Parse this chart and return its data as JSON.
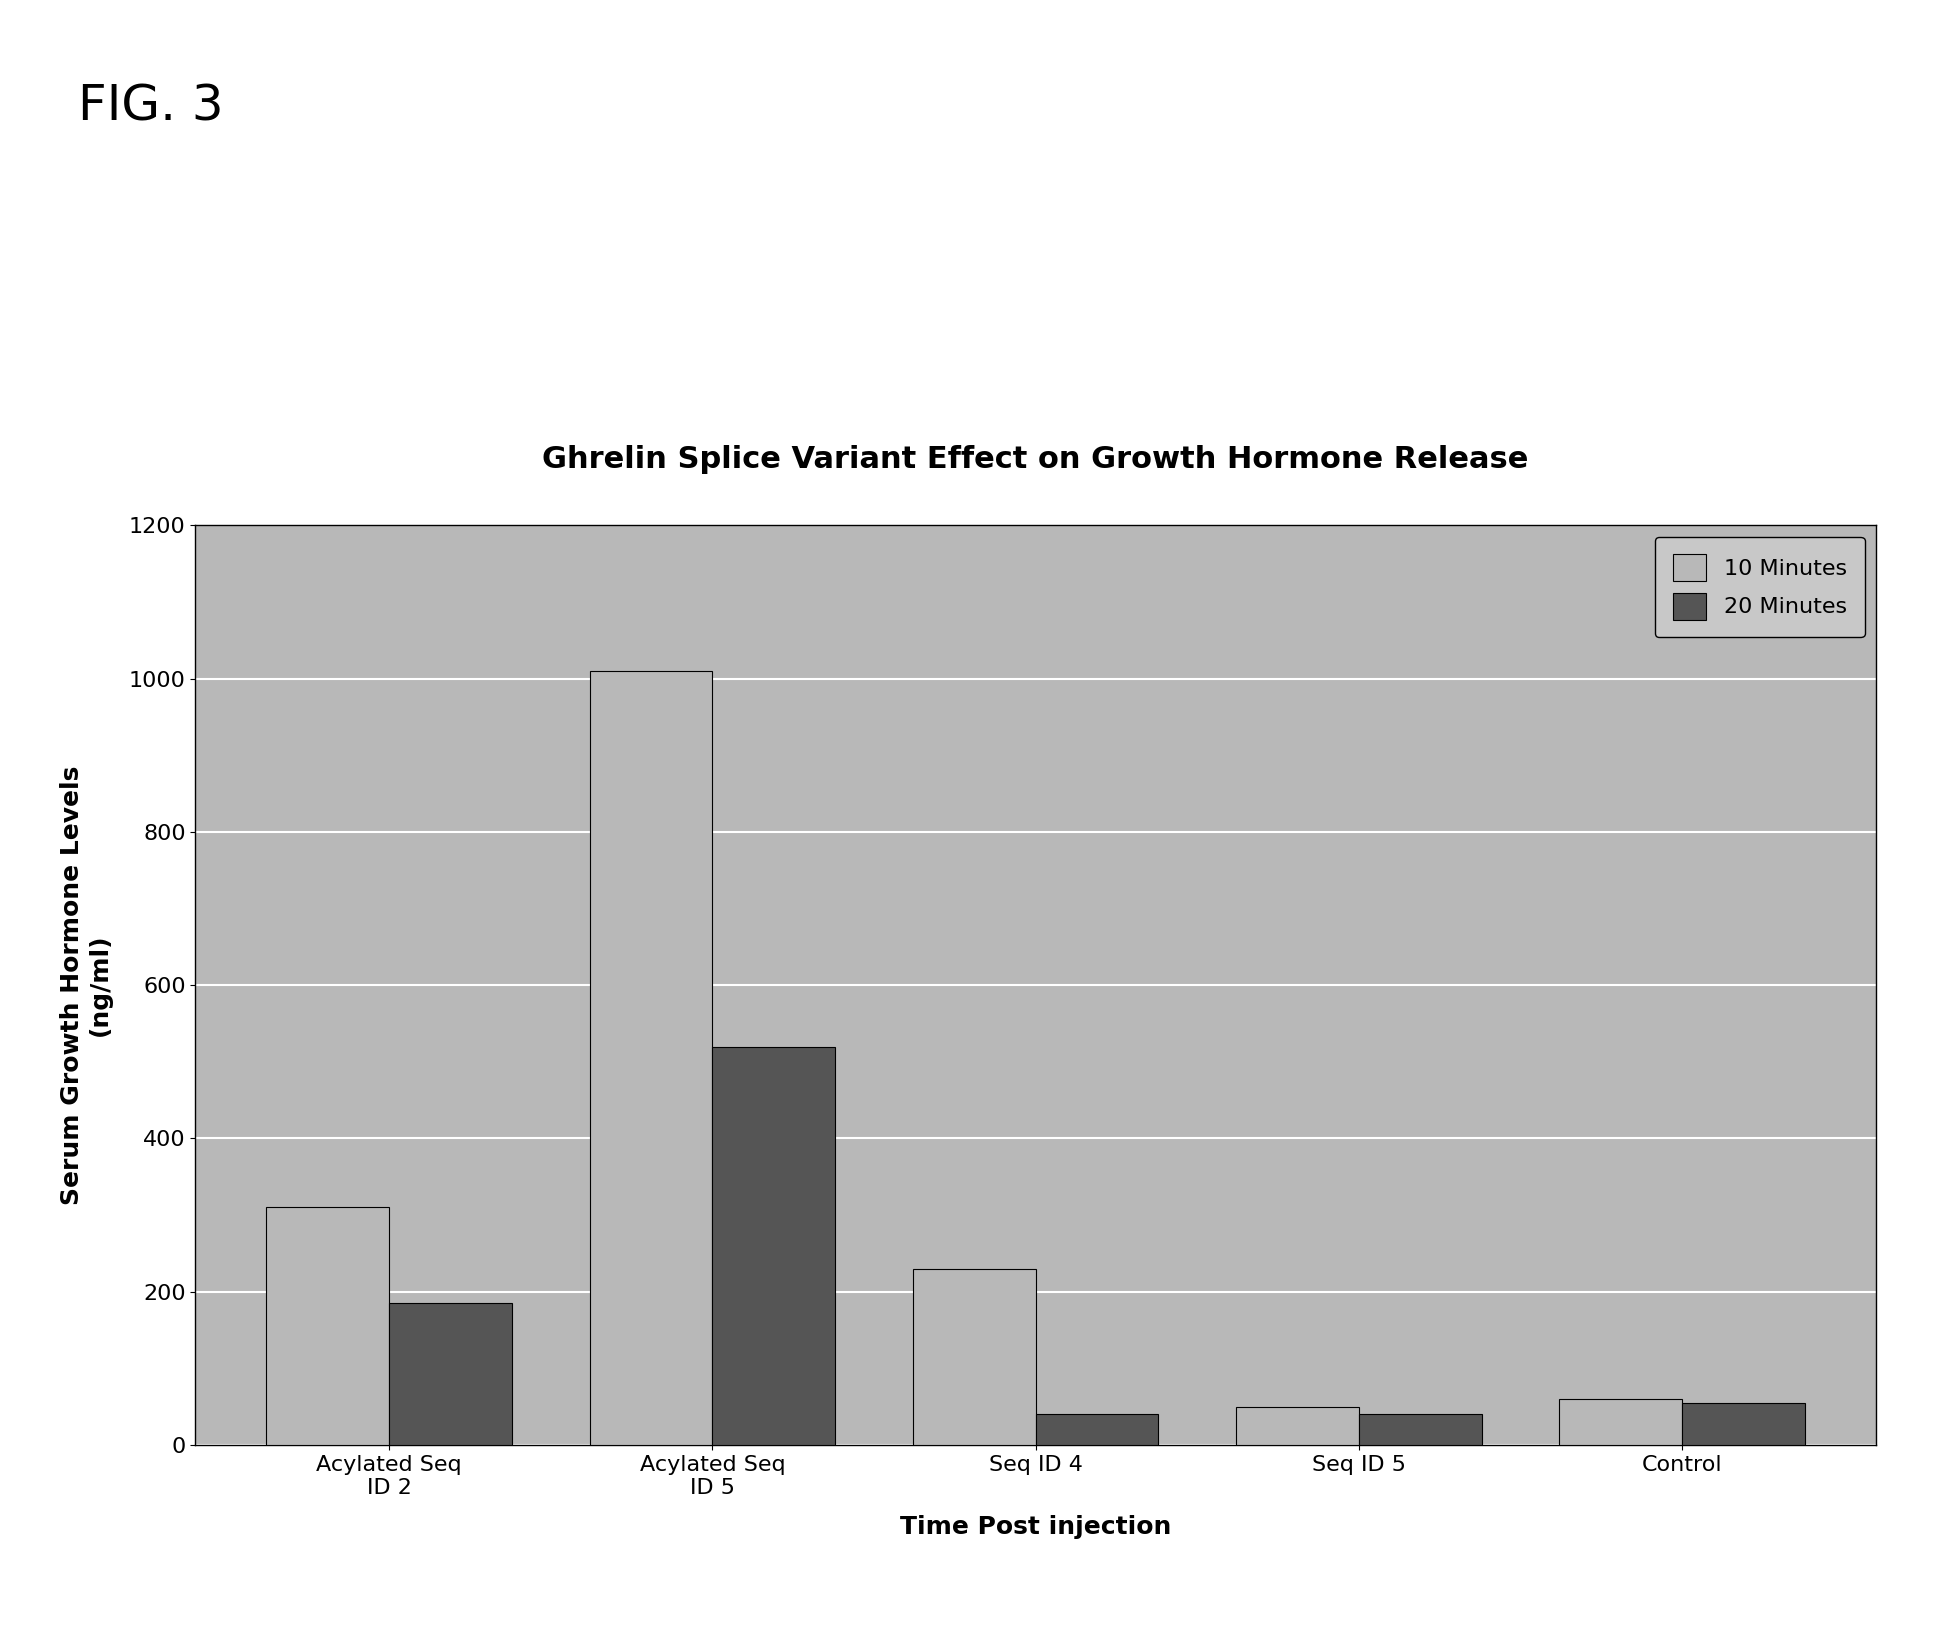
{
  "title": "Ghrelin Splice Variant Effect on Growth Hormone Release",
  "fig_label": "FIG. 3",
  "xlabel": "Time Post injection",
  "ylabel": "Serum Growth Hormone Levels\n(ng/ml)",
  "categories": [
    "Acylated Seq\nID 2",
    "Acylated Seq\nID 5",
    "Seq ID 4",
    "Seq ID 5",
    "Control"
  ],
  "values_10min": [
    310,
    1010,
    230,
    50,
    60
  ],
  "values_20min": [
    185,
    520,
    40,
    40,
    55
  ],
  "color_10min": "#b8b8b8",
  "color_20min": "#555555",
  "ylim": [
    0,
    1200
  ],
  "yticks": [
    0,
    200,
    400,
    600,
    800,
    1000,
    1200
  ],
  "legend_10": "10 Minutes",
  "legend_20": "20 Minutes",
  "background_color": "#b8b8b8",
  "grid_color": "#ffffff",
  "bar_width": 0.38,
  "title_fontsize": 22,
  "label_fontsize": 18,
  "tick_fontsize": 16,
  "legend_fontsize": 16,
  "fig_label_fontsize": 36,
  "fig_width": 19.54,
  "fig_height": 16.42
}
